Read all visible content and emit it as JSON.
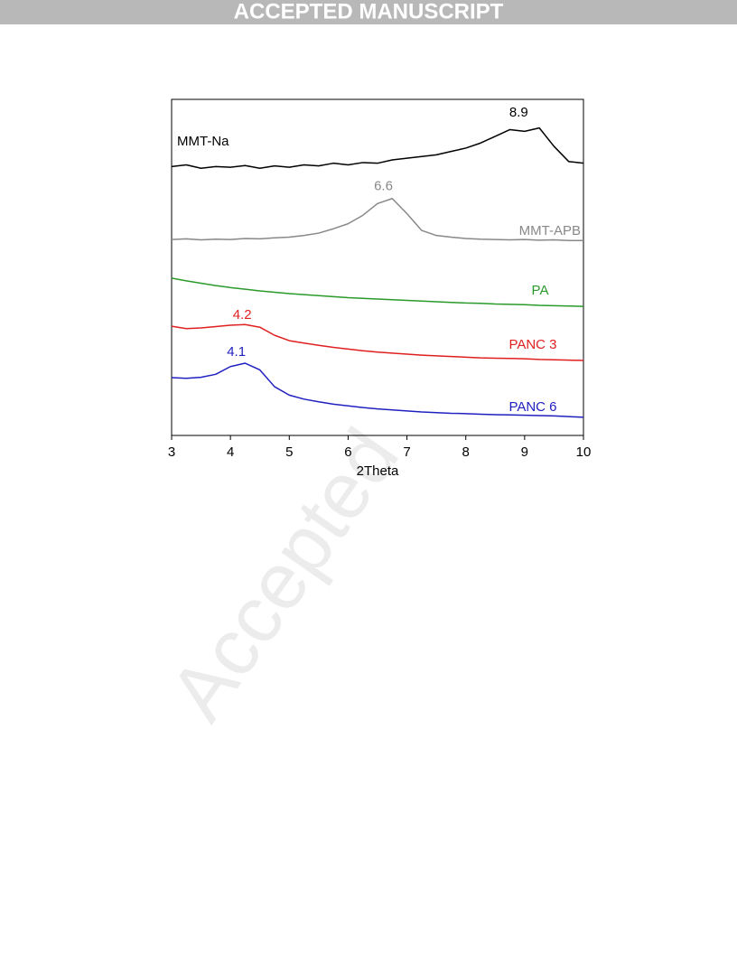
{
  "header": "ACCEPTED MANUSCRIPT",
  "watermark": "Accepted",
  "chart_data": {
    "type": "line",
    "xlabel": "2Theta",
    "x": [
      3,
      3.25,
      3.5,
      3.75,
      4,
      4.25,
      4.5,
      4.75,
      5,
      5.25,
      5.5,
      5.75,
      6,
      6.25,
      6.5,
      6.75,
      7,
      7.25,
      7.5,
      7.75,
      8,
      8.25,
      8.5,
      8.75,
      9,
      9.25,
      9.5,
      9.75,
      10
    ],
    "xlim": [
      3,
      10
    ],
    "xticks": [
      3,
      4,
      5,
      6,
      7,
      8,
      9,
      10
    ],
    "ylim": [
      0,
      100
    ],
    "series": [
      {
        "name": "MMT-Na",
        "color": "#000000",
        "values": [
          80,
          80.5,
          79.5,
          80,
          79.8,
          80.3,
          79.5,
          80.2,
          79.8,
          80.5,
          80.2,
          81,
          80.5,
          81.2,
          81,
          82,
          82.5,
          83,
          83.5,
          84.5,
          85.5,
          87,
          89,
          91,
          90.5,
          91.5,
          86,
          81.5,
          81
        ]
      },
      {
        "name": "MMT-APB",
        "color": "#888888",
        "values": [
          58.3,
          58.5,
          58.2,
          58.4,
          58.3,
          58.6,
          58.5,
          58.8,
          59,
          59.5,
          60.2,
          61.5,
          63,
          65.5,
          69,
          70.5,
          66,
          61,
          59.5,
          59,
          58.6,
          58.4,
          58.3,
          58.2,
          58.3,
          58.1,
          58.2,
          58,
          58
        ]
      },
      {
        "name": "PA",
        "color": "#2a9a2a",
        "values": [
          46.8,
          46,
          45.3,
          44.6,
          44,
          43.5,
          43,
          42.6,
          42.2,
          41.9,
          41.6,
          41.3,
          41,
          40.8,
          40.6,
          40.4,
          40.2,
          40,
          39.8,
          39.6,
          39.4,
          39.3,
          39.1,
          39,
          38.9,
          38.7,
          38.6,
          38.5,
          38.4
        ]
      },
      {
        "name": "PANC 3",
        "color": "#e02020",
        "values": [
          32.5,
          31.8,
          32,
          32.4,
          32.8,
          33,
          32.2,
          29.8,
          28.2,
          27.5,
          26.8,
          26.2,
          25.7,
          25.2,
          24.8,
          24.5,
          24.2,
          23.9,
          23.7,
          23.5,
          23.3,
          23.1,
          23,
          22.9,
          22.8,
          22.6,
          22.5,
          22.4,
          22.3
        ]
      },
      {
        "name": "PANC 6",
        "color": "#2020c0",
        "values": [
          17.2,
          17,
          17.3,
          18.2,
          20.5,
          21.5,
          19.5,
          14.5,
          12,
          10.8,
          10,
          9.3,
          8.8,
          8.3,
          7.9,
          7.6,
          7.3,
          7,
          6.8,
          6.6,
          6.5,
          6.3,
          6.2,
          6.1,
          6,
          5.9,
          5.8,
          5.6,
          5.4
        ]
      }
    ],
    "annotations": [
      {
        "text": "8.9",
        "x": 8.9,
        "y": 96,
        "color": "#000000"
      },
      {
        "text": "6.6",
        "x": 6.6,
        "y": 74,
        "color": "#888888"
      },
      {
        "text": "4.2",
        "x": 4.2,
        "y": 35.8,
        "color": "#e02020"
      },
      {
        "text": "4.1",
        "x": 4.1,
        "y": 24.7,
        "color": "#2020c0"
      }
    ]
  }
}
